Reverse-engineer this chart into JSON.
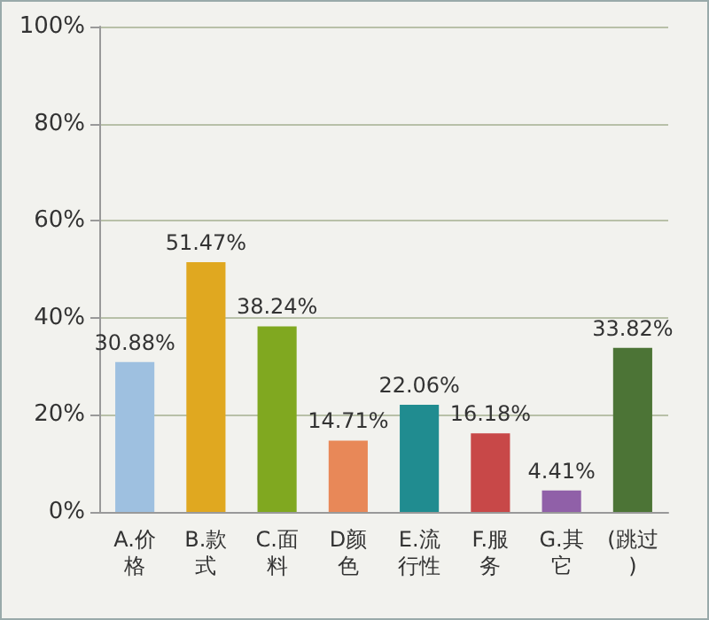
{
  "chart_data": {
    "type": "bar",
    "categories": [
      "A.价格",
      "B.款式",
      "C.面料",
      "D颜色",
      "E.流行性",
      "F.服务",
      "G.其它",
      "(跳过)"
    ],
    "values": [
      30.88,
      51.47,
      38.24,
      14.71,
      22.06,
      16.18,
      4.41,
      33.82
    ],
    "colors": [
      "#9ec0e0",
      "#e0a820",
      "#80a820",
      "#e88858",
      "#208c90",
      "#c84848",
      "#9060a8",
      "#4c7436"
    ],
    "value_labels": [
      "30.88%",
      "51.47%",
      "38.24%",
      "14.71%",
      "22.06%",
      "16.18%",
      "4.41%",
      "33.82%"
    ],
    "ylim": [
      0,
      100
    ],
    "yticks": [
      {
        "value": 0,
        "label": "0%"
      },
      {
        "value": 20,
        "label": "20%"
      },
      {
        "value": 40,
        "label": "40%"
      },
      {
        "value": 60,
        "label": "60%"
      },
      {
        "value": 80,
        "label": "80%"
      },
      {
        "value": 100,
        "label": "100%"
      }
    ],
    "grid": "y"
  }
}
